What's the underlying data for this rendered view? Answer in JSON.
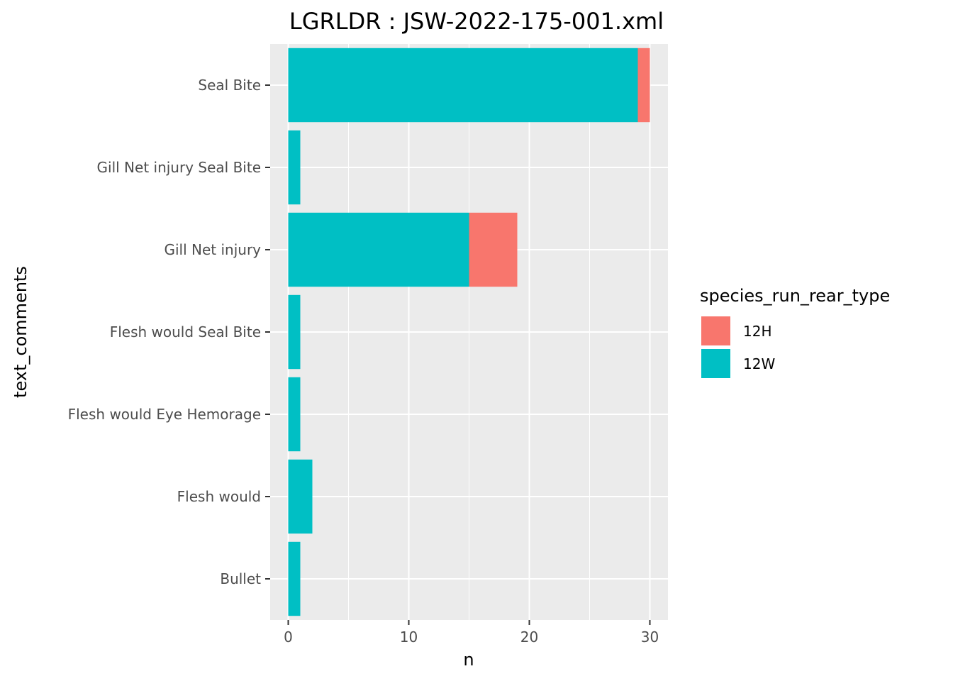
{
  "chart_data": {
    "type": "bar",
    "orientation": "horizontal",
    "stacked": true,
    "title": "LGRLDR : JSW-2022-175-001.xml",
    "xlabel": "n",
    "ylabel": "text_comments",
    "categories": [
      "Seal Bite",
      "Gill Net injury Seal Bite",
      "Gill Net injury",
      "Flesh would Seal Bite",
      "Flesh would Eye Hemorage",
      "Flesh would",
      "Bullet"
    ],
    "series": [
      {
        "name": "12W",
        "color": "#00BFC4",
        "values": [
          29,
          1,
          15,
          1,
          1,
          2,
          1
        ]
      },
      {
        "name": "12H",
        "color": "#F8766D",
        "values": [
          1,
          0,
          4,
          0,
          0,
          0,
          0
        ]
      }
    ],
    "xlim": [
      -1.5,
      31.5
    ],
    "xticks": [
      0,
      10,
      20,
      30
    ],
    "grid": true,
    "legend": {
      "title": "species_run_rear_type",
      "position": "right",
      "entries": [
        {
          "label": "12H",
          "color": "#F8766D"
        },
        {
          "label": "12W",
          "color": "#00BFC4"
        }
      ]
    },
    "panel_background": "#EBEBEB",
    "grid_color": "#FFFFFF"
  }
}
